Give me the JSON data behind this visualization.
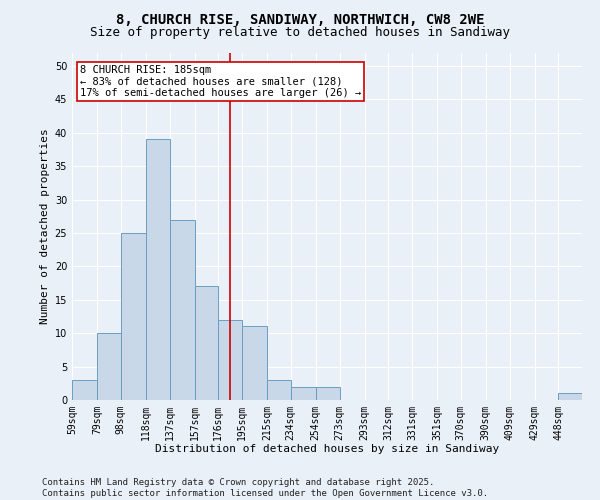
{
  "title_line1": "8, CHURCH RISE, SANDIWAY, NORTHWICH, CW8 2WE",
  "title_line2": "Size of property relative to detached houses in Sandiway",
  "xlabel": "Distribution of detached houses by size in Sandiway",
  "ylabel": "Number of detached properties",
  "bin_labels": [
    "59sqm",
    "79sqm",
    "98sqm",
    "118sqm",
    "137sqm",
    "157sqm",
    "176sqm",
    "195sqm",
    "215sqm",
    "234sqm",
    "254sqm",
    "273sqm",
    "293sqm",
    "312sqm",
    "331sqm",
    "351sqm",
    "370sqm",
    "390sqm",
    "409sqm",
    "429sqm",
    "448sqm"
  ],
  "bin_edges": [
    59,
    79,
    98,
    118,
    137,
    157,
    176,
    195,
    215,
    234,
    254,
    273,
    293,
    312,
    331,
    351,
    370,
    390,
    409,
    429,
    448,
    467
  ],
  "bar_heights": [
    3,
    10,
    25,
    39,
    27,
    17,
    12,
    11,
    3,
    2,
    2,
    0,
    0,
    0,
    0,
    0,
    0,
    0,
    0,
    0,
    1
  ],
  "bar_color": "#c8d8e8",
  "bar_edge_color": "#6a9ec0",
  "reference_line_x": 185,
  "reference_line_color": "#cc0000",
  "annotation_text": "8 CHURCH RISE: 185sqm\n← 83% of detached houses are smaller (128)\n17% of semi-detached houses are larger (26) →",
  "annotation_box_color": "#ffffff",
  "annotation_box_edge_color": "#cc0000",
  "ylim": [
    0,
    52
  ],
  "yticks": [
    0,
    5,
    10,
    15,
    20,
    25,
    30,
    35,
    40,
    45,
    50
  ],
  "footer_text": "Contains HM Land Registry data © Crown copyright and database right 2025.\nContains public sector information licensed under the Open Government Licence v3.0.",
  "background_color": "#eaf0f8",
  "plot_background_color": "#eaf0f8",
  "grid_color": "#ffffff",
  "title_fontsize": 10,
  "subtitle_fontsize": 9,
  "axis_label_fontsize": 8,
  "tick_fontsize": 7,
  "annotation_fontsize": 7.5,
  "footer_fontsize": 6.5
}
